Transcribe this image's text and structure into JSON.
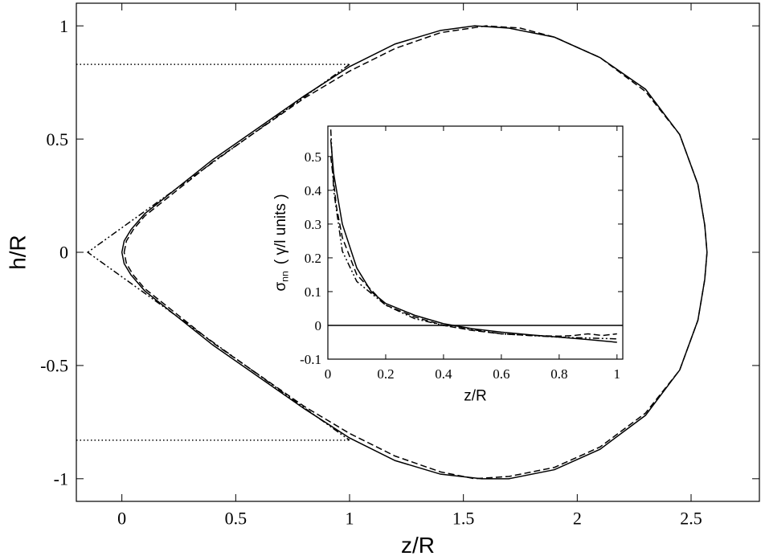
{
  "chart_data": [
    {
      "type": "line",
      "xlabel": "z/R",
      "ylabel": "h/R",
      "xlim": [
        -0.2,
        2.8
      ],
      "ylim": [
        -1.1,
        1.1
      ],
      "xticks": [
        0,
        0.5,
        1,
        1.5,
        2,
        2.5
      ],
      "yticks": [
        -1,
        -0.5,
        0,
        0.5,
        1
      ],
      "series": [
        {
          "color": "#000000",
          "style": "solid",
          "x": [
            0.0,
            0.01,
            0.04,
            0.1,
            0.2,
            0.4,
            0.6,
            0.8,
            1.0,
            1.2,
            1.4,
            1.55,
            1.7,
            1.9,
            2.1,
            2.3,
            2.45,
            2.53,
            2.56,
            2.57,
            2.56,
            2.53,
            2.45,
            2.3,
            2.1,
            1.9,
            1.7,
            1.58,
            1.4,
            1.2,
            1.0,
            0.8,
            0.6,
            0.4,
            0.2,
            0.1,
            0.04,
            0.01,
            0.0
          ],
          "values": [
            0.0,
            0.05,
            0.1,
            0.17,
            0.25,
            0.41,
            0.55,
            0.69,
            0.82,
            0.92,
            0.98,
            1.0,
            0.99,
            0.95,
            0.86,
            0.72,
            0.52,
            0.3,
            0.12,
            0.0,
            -0.12,
            -0.3,
            -0.52,
            -0.72,
            -0.87,
            -0.96,
            -1.0,
            -1.0,
            -0.98,
            -0.92,
            -0.82,
            -0.69,
            -0.55,
            -0.41,
            -0.25,
            -0.17,
            -0.1,
            -0.05,
            0.0
          ]
        },
        {
          "color": "#000000",
          "style": "dashed",
          "x": [
            0.01,
            0.02,
            0.05,
            0.1,
            0.2,
            0.4,
            0.6,
            0.8,
            1.0,
            1.2,
            1.4,
            1.6,
            1.75,
            1.9,
            2.1,
            2.3,
            2.45,
            2.53,
            2.56,
            2.57,
            2.56,
            2.53,
            2.45,
            2.3,
            2.1,
            1.9,
            1.7,
            1.55,
            1.4,
            1.2,
            1.0,
            0.8,
            0.6,
            0.4,
            0.2,
            0.1,
            0.05,
            0.02,
            0.01
          ],
          "values": [
            0.0,
            0.05,
            0.1,
            0.16,
            0.24,
            0.4,
            0.54,
            0.68,
            0.8,
            0.9,
            0.97,
            1.0,
            0.99,
            0.95,
            0.86,
            0.71,
            0.52,
            0.3,
            0.12,
            0.0,
            -0.12,
            -0.3,
            -0.52,
            -0.71,
            -0.86,
            -0.95,
            -0.99,
            -1.0,
            -0.97,
            -0.9,
            -0.8,
            -0.68,
            -0.54,
            -0.4,
            -0.24,
            -0.16,
            -0.1,
            -0.05,
            0.0
          ]
        },
        {
          "color": "#000000",
          "style": "dash-dot-dot",
          "x": [
            1.0,
            -0.15,
            1.0
          ],
          "values": [
            0.83,
            0.0,
            -0.83
          ]
        },
        {
          "color": "#000000",
          "style": "dotted",
          "x": [
            -0.2,
            1.0
          ],
          "values": [
            0.83,
            0.83
          ]
        },
        {
          "color": "#000000",
          "style": "dotted",
          "x": [
            -0.2,
            1.0
          ],
          "values": [
            -0.83,
            -0.83
          ]
        }
      ]
    },
    {
      "type": "line",
      "xlabel": "z/R",
      "ylabel": {
        "symbol": "σ",
        "subscript": "nn",
        "text": "( γ/l units )"
      },
      "xlim": [
        0,
        1.02
      ],
      "ylim": [
        -0.1,
        0.59
      ],
      "xticks": [
        0,
        0.2,
        0.4,
        0.6,
        0.8,
        1
      ],
      "yticks": [
        -0.1,
        0,
        0.1,
        0.2,
        0.3,
        0.4,
        0.5
      ],
      "series": [
        {
          "color": "#000000",
          "style": "solid",
          "x": [
            0,
            1.02
          ],
          "values": [
            0,
            0
          ]
        },
        {
          "color": "#000000",
          "style": "solid",
          "x": [
            0.01,
            0.02,
            0.05,
            0.1,
            0.15,
            0.2,
            0.3,
            0.4,
            0.5,
            0.6,
            0.7,
            0.8,
            0.9,
            1.0
          ],
          "values": [
            0.55,
            0.45,
            0.3,
            0.17,
            0.1,
            0.065,
            0.03,
            0.005,
            -0.01,
            -0.02,
            -0.028,
            -0.035,
            -0.042,
            -0.05
          ]
        },
        {
          "color": "#000000",
          "style": "dashed",
          "x": [
            0.01,
            0.03,
            0.05,
            0.1,
            0.2,
            0.3,
            0.4,
            0.5,
            0.6,
            0.7,
            0.8,
            0.85,
            0.9,
            0.95,
            1.0
          ],
          "values": [
            0.5,
            0.35,
            0.26,
            0.15,
            0.06,
            0.025,
            0.0,
            -0.015,
            -0.025,
            -0.03,
            -0.032,
            -0.03,
            -0.025,
            -0.03,
            -0.025
          ]
        },
        {
          "color": "#000000",
          "style": "dash-dot-dot",
          "x": [
            0.01,
            0.02,
            0.05,
            0.1,
            0.2,
            0.3,
            0.4,
            0.6,
            0.8,
            1.0
          ],
          "values": [
            0.58,
            0.4,
            0.22,
            0.13,
            0.06,
            0.02,
            0.0,
            -0.025,
            -0.035,
            -0.04
          ]
        }
      ]
    }
  ]
}
